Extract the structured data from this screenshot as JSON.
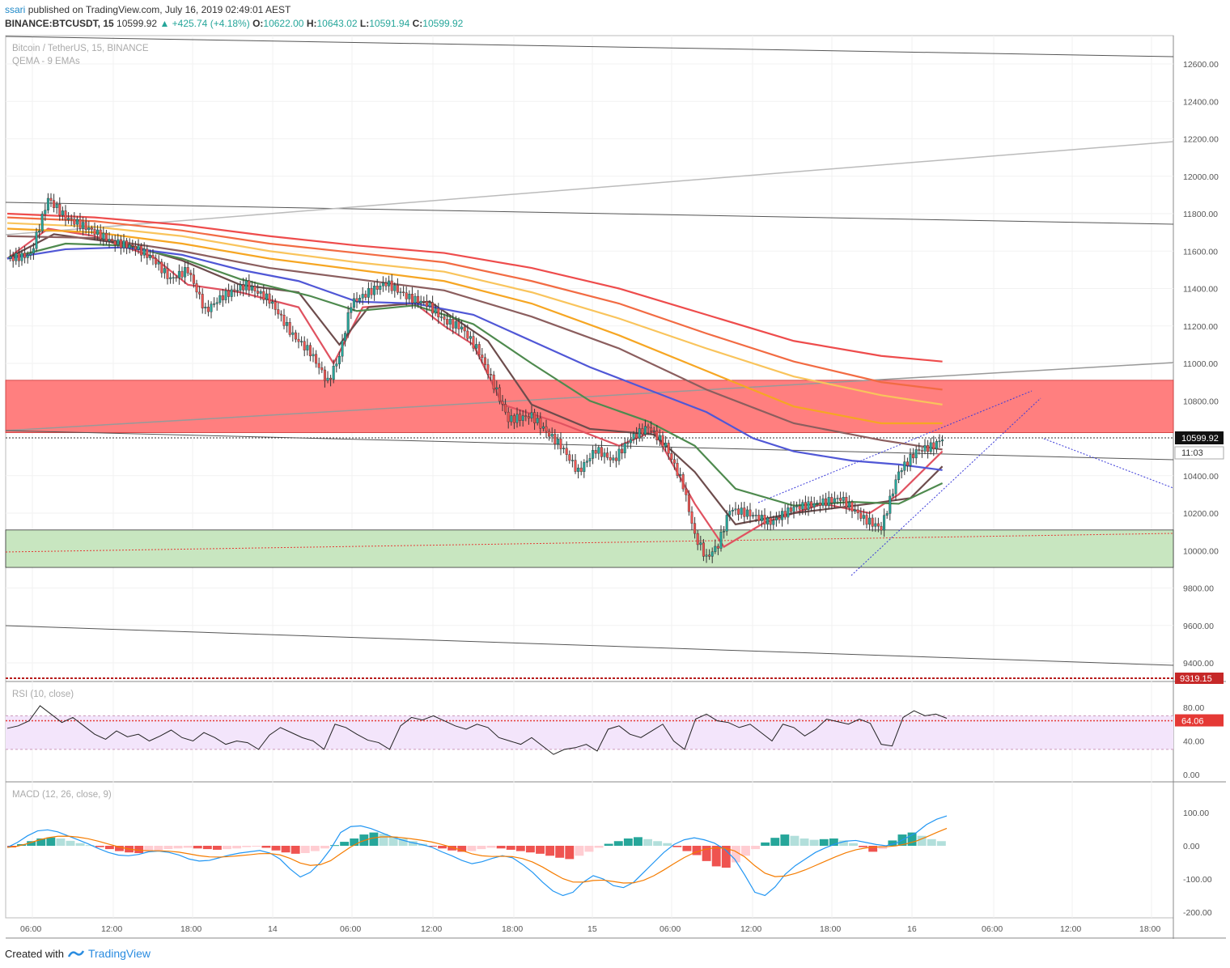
{
  "header": {
    "publisher_user": "ssari",
    "published_text": "published on TradingView.com, July 16, 2019 02:49:01 AEST",
    "symbol": "BINANCE:BTCUSDT, 15",
    "last": "10599.92",
    "change": "▲ +425.74 (+4.18%)",
    "o_label": "O:",
    "o": "10622.00",
    "h_label": "H:",
    "h": "10643.02",
    "l_label": "L:",
    "l": "10591.94",
    "c_label": "C:",
    "c": "10599.92"
  },
  "footer": {
    "created": "Created with",
    "brand": "TradingView"
  },
  "colors": {
    "up": "#26a69a",
    "down": "#ef5350",
    "red_zone": "#ff7f7f",
    "green_zone": "#c8e6c0",
    "rsi_band": "#f3e5fb"
  },
  "chart_data": [
    {
      "type": "candlestick",
      "title": "Bitcoin / TetherUS, 15, BINANCE",
      "indicator": "QEMA - 9 EMAs",
      "last_price": "10599.92",
      "countdown": "11:03",
      "low_marker": "9319.15",
      "y_ticks": [
        "12600.00",
        "12400.00",
        "12200.00",
        "12000.00",
        "11800.00",
        "11600.00",
        "11400.00",
        "11200.00",
        "11000.00",
        "10800.00",
        "10400.00",
        "10200.00",
        "10000.00",
        "9800.00",
        "9600.00",
        "9400.00"
      ],
      "x_ticks": [
        "06:00",
        "12:00",
        "18:00",
        "14",
        "06:00",
        "12:00",
        "18:00",
        "15",
        "06:00",
        "12:00",
        "18:00",
        "16",
        "06:00",
        "12:00",
        "18:00"
      ],
      "zones": [
        {
          "name": "resistance",
          "from": 10630,
          "to": 10910
        },
        {
          "name": "support",
          "from": 9910,
          "to": 10110
        }
      ],
      "price_path": [
        [
          0,
          11560
        ],
        [
          8,
          11580
        ],
        [
          14,
          11880
        ],
        [
          20,
          11780
        ],
        [
          28,
          11720
        ],
        [
          36,
          11650
        ],
        [
          44,
          11620
        ],
        [
          50,
          11560
        ],
        [
          56,
          11450
        ],
        [
          62,
          11500
        ],
        [
          68,
          11280
        ],
        [
          74,
          11360
        ],
        [
          82,
          11420
        ],
        [
          90,
          11340
        ],
        [
          98,
          11150
        ],
        [
          104,
          11060
        ],
        [
          110,
          10900
        ],
        [
          114,
          11040
        ],
        [
          118,
          11320
        ],
        [
          124,
          11380
        ],
        [
          130,
          11430
        ],
        [
          138,
          11350
        ],
        [
          144,
          11320
        ],
        [
          150,
          11230
        ],
        [
          156,
          11190
        ],
        [
          162,
          11060
        ],
        [
          168,
          10850
        ],
        [
          172,
          10700
        ],
        [
          180,
          10720
        ],
        [
          186,
          10620
        ],
        [
          190,
          10560
        ],
        [
          196,
          10420
        ],
        [
          202,
          10540
        ],
        [
          208,
          10480
        ],
        [
          214,
          10600
        ],
        [
          220,
          10660
        ],
        [
          226,
          10560
        ],
        [
          232,
          10350
        ],
        [
          236,
          10080
        ],
        [
          240,
          9960
        ],
        [
          244,
          10030
        ],
        [
          248,
          10220
        ],
        [
          254,
          10200
        ],
        [
          262,
          10150
        ],
        [
          270,
          10230
        ],
        [
          278,
          10250
        ],
        [
          286,
          10280
        ],
        [
          294,
          10170
        ],
        [
          300,
          10120
        ],
        [
          306,
          10420
        ],
        [
          312,
          10530
        ],
        [
          318,
          10560
        ],
        [
          321,
          10600
        ]
      ],
      "emas": [
        {
          "color": "#e05260",
          "points": [
            [
              0,
              11560
            ],
            [
              14,
              11720
            ],
            [
              30,
              11680
            ],
            [
              50,
              11570
            ],
            [
              62,
              11420
            ],
            [
              80,
              11380
            ],
            [
              100,
              11300
            ],
            [
              112,
              11000
            ],
            [
              122,
              11300
            ],
            [
              140,
              11320
            ],
            [
              150,
              11200
            ],
            [
              160,
              11100
            ],
            [
              170,
              10780
            ],
            [
              190,
              10680
            ],
            [
              210,
              10560
            ],
            [
              222,
              10640
            ],
            [
              236,
              10250
            ],
            [
              246,
              10020
            ],
            [
              260,
              10150
            ],
            [
              280,
              10250
            ],
            [
              296,
              10200
            ],
            [
              306,
              10300
            ],
            [
              321,
              10530
            ]
          ]
        },
        {
          "color": "#6d4c4c",
          "points": [
            [
              0,
              11560
            ],
            [
              16,
              11690
            ],
            [
              40,
              11640
            ],
            [
              60,
              11550
            ],
            [
              80,
              11420
            ],
            [
              100,
              11380
            ],
            [
              114,
              11100
            ],
            [
              124,
              11300
            ],
            [
              145,
              11330
            ],
            [
              165,
              11120
            ],
            [
              180,
              10780
            ],
            [
              200,
              10650
            ],
            [
              222,
              10620
            ],
            [
              236,
              10420
            ],
            [
              250,
              10140
            ],
            [
              270,
              10200
            ],
            [
              296,
              10250
            ],
            [
              310,
              10280
            ],
            [
              321,
              10450
            ]
          ]
        },
        {
          "color": "#4e8a4e",
          "points": [
            [
              0,
              11560
            ],
            [
              20,
              11640
            ],
            [
              40,
              11630
            ],
            [
              60,
              11560
            ],
            [
              80,
              11450
            ],
            [
              104,
              11360
            ],
            [
              120,
              11280
            ],
            [
              140,
              11310
            ],
            [
              160,
              11210
            ],
            [
              180,
              11000
            ],
            [
              200,
              10800
            ],
            [
              220,
              10690
            ],
            [
              236,
              10560
            ],
            [
              250,
              10330
            ],
            [
              270,
              10240
            ],
            [
              290,
              10260
            ],
            [
              306,
              10250
            ],
            [
              321,
              10360
            ]
          ]
        },
        {
          "color": "#5057d6",
          "points": [
            [
              0,
              11560
            ],
            [
              20,
              11610
            ],
            [
              40,
              11620
            ],
            [
              60,
              11580
            ],
            [
              80,
              11500
            ],
            [
              100,
              11440
            ],
            [
              120,
              11330
            ],
            [
              140,
              11320
            ],
            [
              160,
              11260
            ],
            [
              180,
              11120
            ],
            [
              200,
              10980
            ],
            [
              220,
              10860
            ],
            [
              240,
              10740
            ],
            [
              256,
              10600
            ],
            [
              270,
              10530
            ],
            [
              290,
              10480
            ],
            [
              306,
              10460
            ],
            [
              321,
              10430
            ]
          ]
        },
        {
          "color": "#8b5e5e",
          "points": [
            [
              0,
              11680
            ],
            [
              30,
              11670
            ],
            [
              60,
              11600
            ],
            [
              90,
              11510
            ],
            [
              120,
              11450
            ],
            [
              150,
              11390
            ],
            [
              180,
              11250
            ],
            [
              210,
              11080
            ],
            [
              240,
              10860
            ],
            [
              270,
              10680
            ],
            [
              300,
              10590
            ],
            [
              321,
              10540
            ]
          ]
        },
        {
          "color": "#f6a623",
          "points": [
            [
              0,
              11720
            ],
            [
              30,
              11700
            ],
            [
              60,
              11640
            ],
            [
              90,
              11560
            ],
            [
              120,
              11500
            ],
            [
              150,
              11440
            ],
            [
              180,
              11320
            ],
            [
              210,
              11150
            ],
            [
              240,
              10960
            ],
            [
              270,
              10770
            ],
            [
              300,
              10680
            ],
            [
              321,
              10680
            ]
          ]
        },
        {
          "color": "#f9c45c",
          "points": [
            [
              0,
              11750
            ],
            [
              30,
              11730
            ],
            [
              60,
              11680
            ],
            [
              90,
              11600
            ],
            [
              120,
              11540
            ],
            [
              150,
              11490
            ],
            [
              180,
              11380
            ],
            [
              210,
              11240
            ],
            [
              240,
              11080
            ],
            [
              270,
              10930
            ],
            [
              300,
              10830
            ],
            [
              321,
              10780
            ]
          ]
        },
        {
          "color": "#f26b43",
          "points": [
            [
              0,
              11780
            ],
            [
              30,
              11760
            ],
            [
              60,
              11710
            ],
            [
              90,
              11640
            ],
            [
              120,
              11590
            ],
            [
              150,
              11540
            ],
            [
              180,
              11440
            ],
            [
              210,
              11320
            ],
            [
              240,
              11160
            ],
            [
              270,
              11010
            ],
            [
              300,
              10900
            ],
            [
              321,
              10860
            ]
          ]
        },
        {
          "color": "#ee4c4c",
          "points": [
            [
              0,
              11800
            ],
            [
              30,
              11780
            ],
            [
              60,
              11740
            ],
            [
              90,
              11680
            ],
            [
              120,
              11630
            ],
            [
              150,
              11590
            ],
            [
              180,
              11510
            ],
            [
              210,
              11400
            ],
            [
              240,
              11260
            ],
            [
              270,
              11120
            ],
            [
              300,
              11040
            ],
            [
              321,
              11010
            ]
          ]
        }
      ]
    },
    {
      "type": "line",
      "title": "RSI (10, close)",
      "value": "64.06",
      "y_ticks": [
        "80.00",
        "40.00",
        "0.00"
      ],
      "levels": [
        70,
        30
      ],
      "values": [
        55,
        58,
        64,
        82,
        72,
        62,
        68,
        58,
        48,
        42,
        52,
        45,
        48,
        40,
        46,
        53,
        44,
        40,
        50,
        44,
        36,
        40,
        38,
        30,
        47,
        56,
        50,
        44,
        40,
        30,
        60,
        56,
        48,
        41,
        38,
        30,
        58,
        68,
        65,
        70,
        64,
        58,
        54,
        60,
        56,
        44,
        40,
        36,
        44,
        34,
        24,
        30,
        32,
        36,
        28,
        54,
        58,
        48,
        44,
        52,
        60,
        40,
        30,
        66,
        72,
        64,
        62,
        56,
        60,
        50,
        40,
        60,
        56,
        46,
        54,
        66,
        63,
        60,
        66,
        61,
        36,
        34,
        68,
        76,
        70,
        72,
        67
      ]
    },
    {
      "type": "bar+line",
      "title": "MACD (12, 26, close, 9)",
      "y_ticks": [
        "100.00",
        "0.00",
        "-100.00",
        "-200.00"
      ],
      "histogram": [
        -5,
        5,
        14,
        22,
        25,
        22,
        15,
        8,
        2,
        -4,
        -10,
        -16,
        -20,
        -22,
        -18,
        -14,
        -10,
        -8,
        -6,
        -8,
        -10,
        -12,
        -10,
        -8,
        -4,
        -2,
        -6,
        -14,
        -20,
        -24,
        -22,
        -16,
        -8,
        2,
        12,
        22,
        34,
        40,
        36,
        28,
        22,
        14,
        6,
        -2,
        -8,
        -14,
        -18,
        -16,
        -10,
        -6,
        -8,
        -12,
        -16,
        -20,
        -24,
        -30,
        -36,
        -40,
        -30,
        -18,
        -6,
        6,
        14,
        22,
        26,
        20,
        14,
        8,
        -4,
        -16,
        -28,
        -46,
        -62,
        -66,
        -50,
        -30,
        -10,
        10,
        24,
        34,
        30,
        22,
        18,
        20,
        22,
        16,
        8,
        -4,
        -18,
        -10,
        16,
        34,
        40,
        30,
        20,
        14
      ],
      "macd": [
        -5,
        10,
        30,
        45,
        48,
        42,
        30,
        18,
        6,
        -8,
        -20,
        -28,
        -30,
        -26,
        -18,
        -16,
        -20,
        -28,
        -40,
        -46,
        -44,
        -36,
        -28,
        -22,
        -18,
        -14,
        -22,
        -40,
        -70,
        -94,
        -80,
        -50,
        -10,
        40,
        58,
        60,
        52,
        40,
        28,
        18,
        10,
        4,
        -4,
        -18,
        -30,
        -44,
        -54,
        -48,
        -38,
        -30,
        -36,
        -56,
        -80,
        -110,
        -136,
        -150,
        -140,
        -110,
        -90,
        -100,
        -120,
        -126,
        -110,
        -80,
        -50,
        -20,
        4,
        18,
        24,
        18,
        8,
        -10,
        -40,
        -88,
        -140,
        -150,
        -124,
        -86,
        -60,
        -40,
        -20,
        -6,
        6,
        14,
        16,
        10,
        4,
        0,
        8,
        24,
        40,
        64,
        80,
        90
      ]
    }
  ]
}
